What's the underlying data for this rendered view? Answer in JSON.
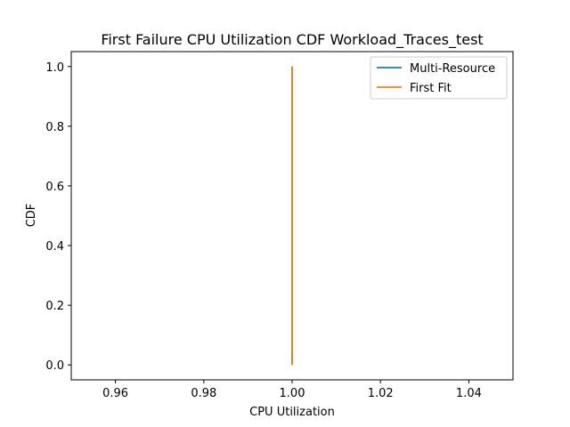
{
  "chart_data": {
    "type": "line",
    "title": "First Failure CPU Utilization CDF Workload_Traces_test",
    "xlabel": "CPU Utilization",
    "ylabel": "CDF",
    "xlim": [
      0.95,
      1.05
    ],
    "ylim": [
      -0.05,
      1.05
    ],
    "xticks": [
      0.96,
      0.98,
      1.0,
      1.02,
      1.04
    ],
    "xtick_labels": [
      "0.96",
      "0.98",
      "1.00",
      "1.02",
      "1.04"
    ],
    "yticks": [
      0.0,
      0.2,
      0.4,
      0.6,
      0.8,
      1.0
    ],
    "ytick_labels": [
      "0.0",
      "0.2",
      "0.4",
      "0.6",
      "0.8",
      "1.0"
    ],
    "grid": false,
    "legend_position": "top-right",
    "series": [
      {
        "name": "Multi-Resource",
        "color": "#1f77b4",
        "x": [
          1.0,
          1.0
        ],
        "y": [
          0.0,
          1.0
        ]
      },
      {
        "name": "First Fit",
        "color": "#ff7f0e",
        "x": [
          1.0,
          1.0
        ],
        "y": [
          0.0,
          1.0
        ]
      }
    ]
  }
}
